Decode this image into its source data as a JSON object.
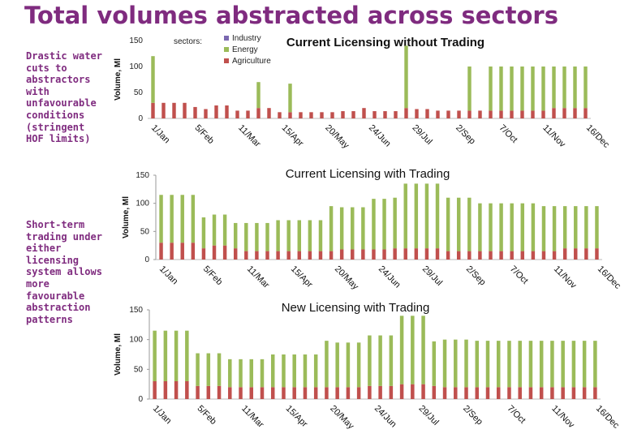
{
  "slide_title": "Total volumes abstracted across sectors",
  "notes": {
    "drastic": "Drastic water cuts to abstractors with unfavourable conditions (stringent HOF limits)",
    "short_term": "Short-term trading under either licensing system allows more favourable abstraction patterns"
  },
  "colors": {
    "industry": "#7b68b0",
    "energy": "#9bbb59",
    "agriculture": "#c0504d"
  },
  "chart_data": [
    {
      "type": "bar",
      "stacked": true,
      "title": "Current Licensing without Trading",
      "ylabel": "Volume, Ml",
      "ylim": [
        0,
        150
      ],
      "yticks": [
        0,
        50,
        100,
        150
      ],
      "xticklabels": [
        "1/Jan",
        "5/Feb",
        "11/Mar",
        "15/Apr",
        "20/May",
        "24/Jun",
        "29/Jul",
        "2/Sep",
        "7/Oct",
        "11/Nov",
        "16/Dec"
      ],
      "legend": {
        "title": "sectors:",
        "items": [
          "Industry",
          "Energy",
          "Agriculture"
        ],
        "placement": "top-left"
      },
      "series": [
        {
          "name": "Agriculture",
          "values": [
            30,
            30,
            30,
            30,
            22,
            18,
            25,
            25,
            15,
            15,
            20,
            20,
            12,
            12,
            12,
            12,
            12,
            12,
            14,
            14,
            20,
            14,
            14,
            14,
            20,
            18,
            18,
            15,
            15,
            15,
            15,
            15,
            15,
            15,
            15,
            15,
            15,
            15,
            20,
            20,
            20,
            20
          ]
        },
        {
          "name": "Energy",
          "values": [
            90,
            0,
            0,
            0,
            0,
            0,
            0,
            0,
            0,
            0,
            50,
            0,
            0,
            55,
            0,
            0,
            0,
            0,
            0,
            0,
            0,
            0,
            0,
            0,
            120,
            0,
            0,
            0,
            0,
            0,
            85,
            0,
            85,
            85,
            85,
            85,
            85,
            85,
            80,
            80,
            80,
            80
          ]
        }
      ]
    },
    {
      "type": "bar",
      "stacked": true,
      "title": "Current Licensing with Trading",
      "ylabel": "Volume, Ml",
      "ylim": [
        0,
        150
      ],
      "yticks": [
        0,
        50,
        100,
        150
      ],
      "xticklabels": [
        "1/Jan",
        "5/Feb",
        "11/Mar",
        "15/Apr",
        "20/May",
        "24/Jun",
        "29/Jul",
        "2/Sep",
        "7/Oct",
        "11/Nov",
        "16/Dec"
      ],
      "series": [
        {
          "name": "Agriculture",
          "values": [
            30,
            30,
            30,
            30,
            20,
            25,
            25,
            20,
            15,
            15,
            15,
            15,
            15,
            15,
            15,
            15,
            15,
            18,
            18,
            18,
            18,
            18,
            20,
            20,
            20,
            20,
            20,
            15,
            15,
            15,
            15,
            15,
            15,
            15,
            15,
            15,
            15,
            15,
            20,
            20,
            20,
            20
          ]
        },
        {
          "name": "Energy",
          "values": [
            85,
            85,
            85,
            85,
            55,
            55,
            55,
            45,
            50,
            50,
            50,
            55,
            55,
            55,
            55,
            55,
            80,
            75,
            75,
            75,
            90,
            90,
            90,
            115,
            115,
            115,
            115,
            95,
            95,
            95,
            85,
            85,
            85,
            85,
            85,
            85,
            80,
            80,
            75,
            75,
            75,
            75
          ]
        }
      ]
    },
    {
      "type": "bar",
      "stacked": true,
      "title": "New Licensing with Trading",
      "ylabel": "Volume, Ml",
      "ylim": [
        0,
        150
      ],
      "yticks": [
        0,
        50,
        100,
        150
      ],
      "xticklabels": [
        "1/Jan",
        "5/Feb",
        "11/Mar",
        "15/Apr",
        "20/May",
        "24/Jun",
        "29/Jul",
        "2/Sep",
        "7/Oct",
        "11/Nov",
        "16/Dec"
      ],
      "series": [
        {
          "name": "Agriculture",
          "values": [
            30,
            30,
            30,
            30,
            22,
            22,
            22,
            20,
            20,
            20,
            20,
            20,
            20,
            20,
            20,
            20,
            20,
            20,
            20,
            20,
            22,
            22,
            22,
            25,
            25,
            25,
            22,
            20,
            20,
            20,
            20,
            20,
            20,
            20,
            20,
            20,
            20,
            20,
            20,
            20,
            20,
            20
          ]
        },
        {
          "name": "Energy",
          "values": [
            85,
            85,
            85,
            85,
            55,
            55,
            55,
            47,
            47,
            47,
            47,
            55,
            55,
            55,
            55,
            55,
            78,
            75,
            75,
            75,
            85,
            85,
            85,
            115,
            115,
            115,
            75,
            80,
            80,
            80,
            78,
            78,
            78,
            78,
            78,
            78,
            78,
            78,
            78,
            78,
            78,
            78
          ]
        }
      ]
    }
  ]
}
